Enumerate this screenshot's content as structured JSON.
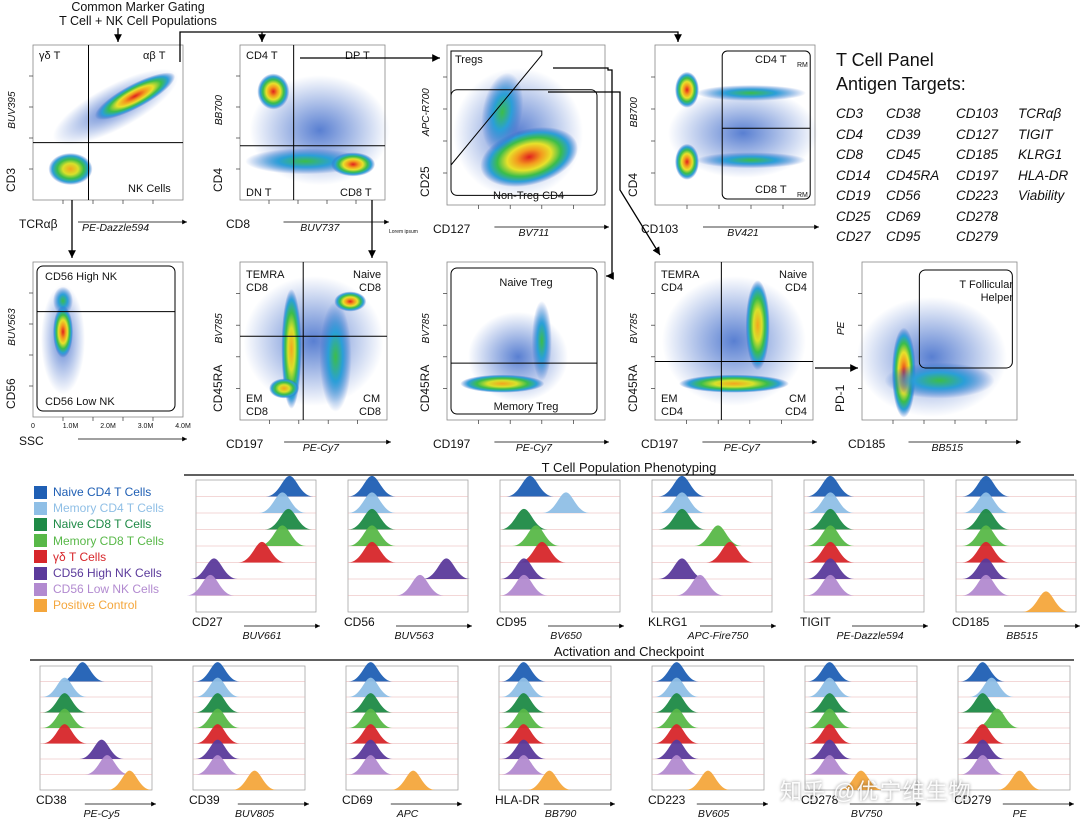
{
  "header": {
    "line1": "Common Marker Gating",
    "line2": "T Cell + NK Cell Populations"
  },
  "antigen_panel": {
    "title_line1": "T Cell Panel",
    "title_line2": "Antigen Targets:",
    "targets": [
      "CD3",
      "CD38",
      "CD103",
      "TCRαβ",
      "CD4",
      "CD39",
      "CD127",
      "TIGIT",
      "CD8",
      "CD45",
      "CD185",
      "KLRG1",
      "CD14",
      "CD45RA",
      "CD197",
      "HLA-DR",
      "CD19",
      "CD56",
      "CD223",
      "Viability",
      "CD25",
      "CD69",
      "CD278",
      "",
      "CD27",
      "CD95",
      "CD279",
      ""
    ]
  },
  "scatter_plots": [
    {
      "id": "p1",
      "ylabel": "CD3",
      "yfluor": "BUV395",
      "xlabel": "TCRαβ",
      "xfluor": "PE-Dazzle594",
      "gates": [
        "γδ T",
        "αβ T",
        "NK Cells"
      ]
    },
    {
      "id": "p2",
      "ylabel": "CD4",
      "yfluor": "BB700",
      "xlabel": "CD8",
      "xfluor": "BUV737",
      "gates": [
        "CD4 T",
        "DP T",
        "DN T",
        "CD8 T"
      ]
    },
    {
      "id": "p3",
      "ylabel": "CD25",
      "yfluor": "APC-R700",
      "xlabel": "CD127",
      "xfluor": "BV711",
      "gates": [
        "Tregs",
        "Non-Treg CD4"
      ]
    },
    {
      "id": "p4",
      "ylabel": "CD4",
      "yfluor": "BB700",
      "xlabel": "CD103",
      "xfluor": "BV421",
      "gates": [
        "CD4 T",
        "RM",
        "CD8 T",
        "RM"
      ]
    },
    {
      "id": "p5",
      "ylabel": "CD56",
      "yfluor": "BUV563",
      "xlabel": "SSC",
      "xfluor": "",
      "gates": [
        "CD56 High NK",
        "CD56 Low NK"
      ]
    },
    {
      "id": "p6",
      "ylabel": "CD45RA",
      "yfluor": "BV785",
      "xlabel": "CD197",
      "xfluor": "PE-Cy7",
      "gates": [
        "TEMRA",
        "CD8",
        "Naive",
        "CD8",
        "EM",
        "CD8",
        "CM",
        "CD8"
      ]
    },
    {
      "id": "p7",
      "ylabel": "CD45RA",
      "yfluor": "BV785",
      "xlabel": "CD197",
      "xfluor": "PE-Cy7",
      "gates": [
        "Naive Treg",
        "Memory Treg"
      ]
    },
    {
      "id": "p8",
      "ylabel": "CD45RA",
      "yfluor": "BV785",
      "xlabel": "CD197",
      "xfluor": "PE-Cy7",
      "gates": [
        "TEMRA",
        "CD4",
        "Naive",
        "CD4",
        "EM",
        "CD4",
        "CM",
        "CD4"
      ]
    },
    {
      "id": "p9",
      "ylabel": "PD-1",
      "yfluor": "PE",
      "xlabel": "CD185",
      "xfluor": "BB515",
      "gates": [
        "T Follicular",
        "Helper"
      ]
    }
  ],
  "ssc_ticks": [
    "0",
    "1.0M",
    "2.0M",
    "3.0M",
    "4.0M"
  ],
  "lorem_caption": "Lorem ipsum",
  "sections": {
    "phenotyping": "T Cell Population Phenotyping",
    "activation": "Activation and Checkpoint"
  },
  "legend": [
    {
      "label": "Naive CD4 T Cells",
      "color": "#1f5fb4"
    },
    {
      "label": "Memory CD4 T Cells",
      "color": "#8fbfe6"
    },
    {
      "label": "Naive CD8 T Cells",
      "color": "#1e8a46"
    },
    {
      "label": "Memory CD8 T Cells",
      "color": "#58b848"
    },
    {
      "label": "γδ T Cells",
      "color": "#d7262a"
    },
    {
      "label": "CD56 High NK Cells",
      "color": "#5b3a9b"
    },
    {
      "label": "CD56 Low NK Cells",
      "color": "#b28ad0"
    },
    {
      "label": "Positive Control",
      "color": "#f4a63c"
    }
  ],
  "histograms_row1": [
    {
      "marker": "CD27",
      "fluor": "BUV661",
      "peaks": [
        0.78,
        0.72,
        0.77,
        0.72,
        0.55,
        0.15,
        0.12,
        null
      ]
    },
    {
      "marker": "CD56",
      "fluor": "BUV563",
      "peaks": [
        0.2,
        0.2,
        0.2,
        0.2,
        0.2,
        0.82,
        0.6,
        null
      ]
    },
    {
      "marker": "CD95",
      "fluor": "BV650",
      "peaks": [
        0.25,
        0.55,
        0.2,
        0.3,
        0.35,
        0.2,
        0.2,
        null
      ]
    },
    {
      "marker": "KLRG1",
      "fluor": "APC-Fire750",
      "peaks": [
        0.25,
        0.25,
        0.25,
        0.55,
        0.65,
        0.25,
        0.4,
        null
      ]
    },
    {
      "marker": "TIGIT",
      "fluor": "PE-Dazzle594",
      "peaks": [
        0.22,
        0.22,
        0.22,
        0.22,
        0.22,
        0.22,
        0.22,
        null
      ]
    },
    {
      "marker": "CD185",
      "fluor": "BB515",
      "peaks": [
        0.25,
        0.25,
        0.25,
        0.25,
        0.25,
        0.25,
        0.25,
        0.75
      ]
    }
  ],
  "histograms_row2": [
    {
      "marker": "CD38",
      "fluor": "PE-Cy5",
      "peaks": [
        0.38,
        0.22,
        0.22,
        0.22,
        0.22,
        0.55,
        0.6,
        0.8
      ]
    },
    {
      "marker": "CD39",
      "fluor": "BUV805",
      "peaks": [
        0.22,
        0.22,
        0.22,
        0.22,
        0.22,
        0.22,
        0.22,
        0.55
      ]
    },
    {
      "marker": "CD69",
      "fluor": "APC",
      "peaks": [
        0.22,
        0.22,
        0.22,
        0.22,
        0.22,
        0.22,
        0.22,
        0.6
      ]
    },
    {
      "marker": "HLA-DR",
      "fluor": "BB790",
      "peaks": [
        0.22,
        0.22,
        0.22,
        0.22,
        0.22,
        0.22,
        0.22,
        0.45
      ]
    },
    {
      "marker": "CD223",
      "fluor": "BV605",
      "peaks": [
        0.22,
        0.22,
        0.22,
        0.22,
        0.22,
        0.22,
        0.22,
        0.5
      ]
    },
    {
      "marker": "CD278",
      "fluor": "BV750",
      "peaks": [
        0.22,
        0.22,
        0.22,
        0.22,
        0.22,
        0.22,
        0.22,
        0.5
      ]
    },
    {
      "marker": "CD279",
      "fluor": "PE",
      "peaks": [
        0.22,
        0.3,
        0.22,
        0.35,
        0.22,
        0.22,
        0.22,
        0.55
      ]
    }
  ],
  "watermark": "知乎 @优宁维生物"
}
